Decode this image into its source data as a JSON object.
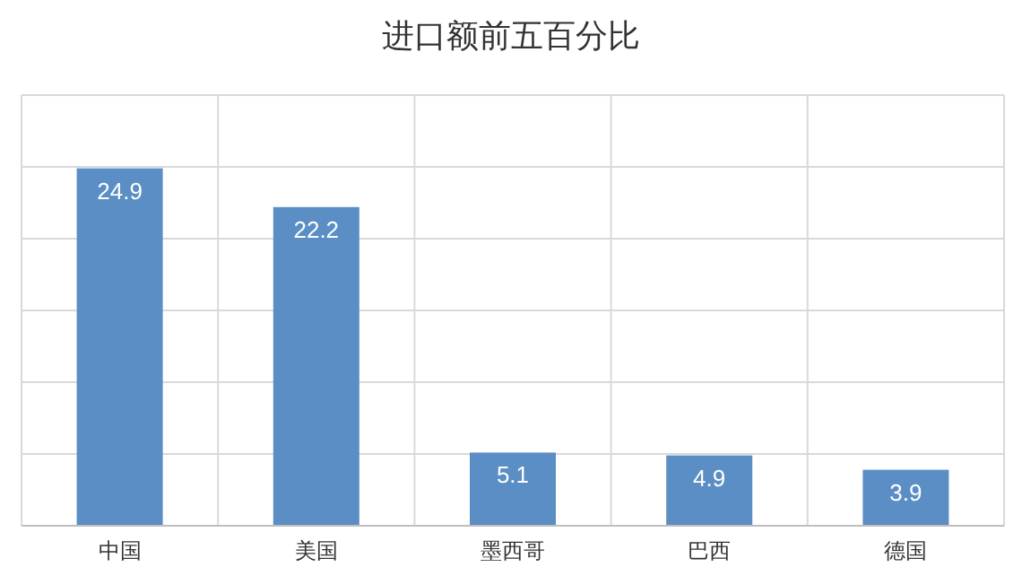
{
  "chart_data": {
    "type": "bar",
    "title": "进口额前五百分比",
    "categories": [
      "中国",
      "美国",
      "墨西哥",
      "巴西",
      "德国"
    ],
    "values": [
      24.9,
      22.2,
      5.1,
      4.9,
      3.9
    ],
    "color": "#5b8ec4",
    "data_labels": true,
    "ylim": [
      0,
      30
    ],
    "yticks": [
      {
        "value": 0,
        "label": null
      },
      {
        "value": 5,
        "label": null
      },
      {
        "value": 10,
        "label": null
      },
      {
        "value": 15,
        "label": null
      },
      {
        "value": 20,
        "label": null
      },
      {
        "value": 25,
        "label": null
      },
      {
        "value": 30,
        "label": null
      }
    ],
    "grid": true,
    "tick_labels": "x"
  }
}
